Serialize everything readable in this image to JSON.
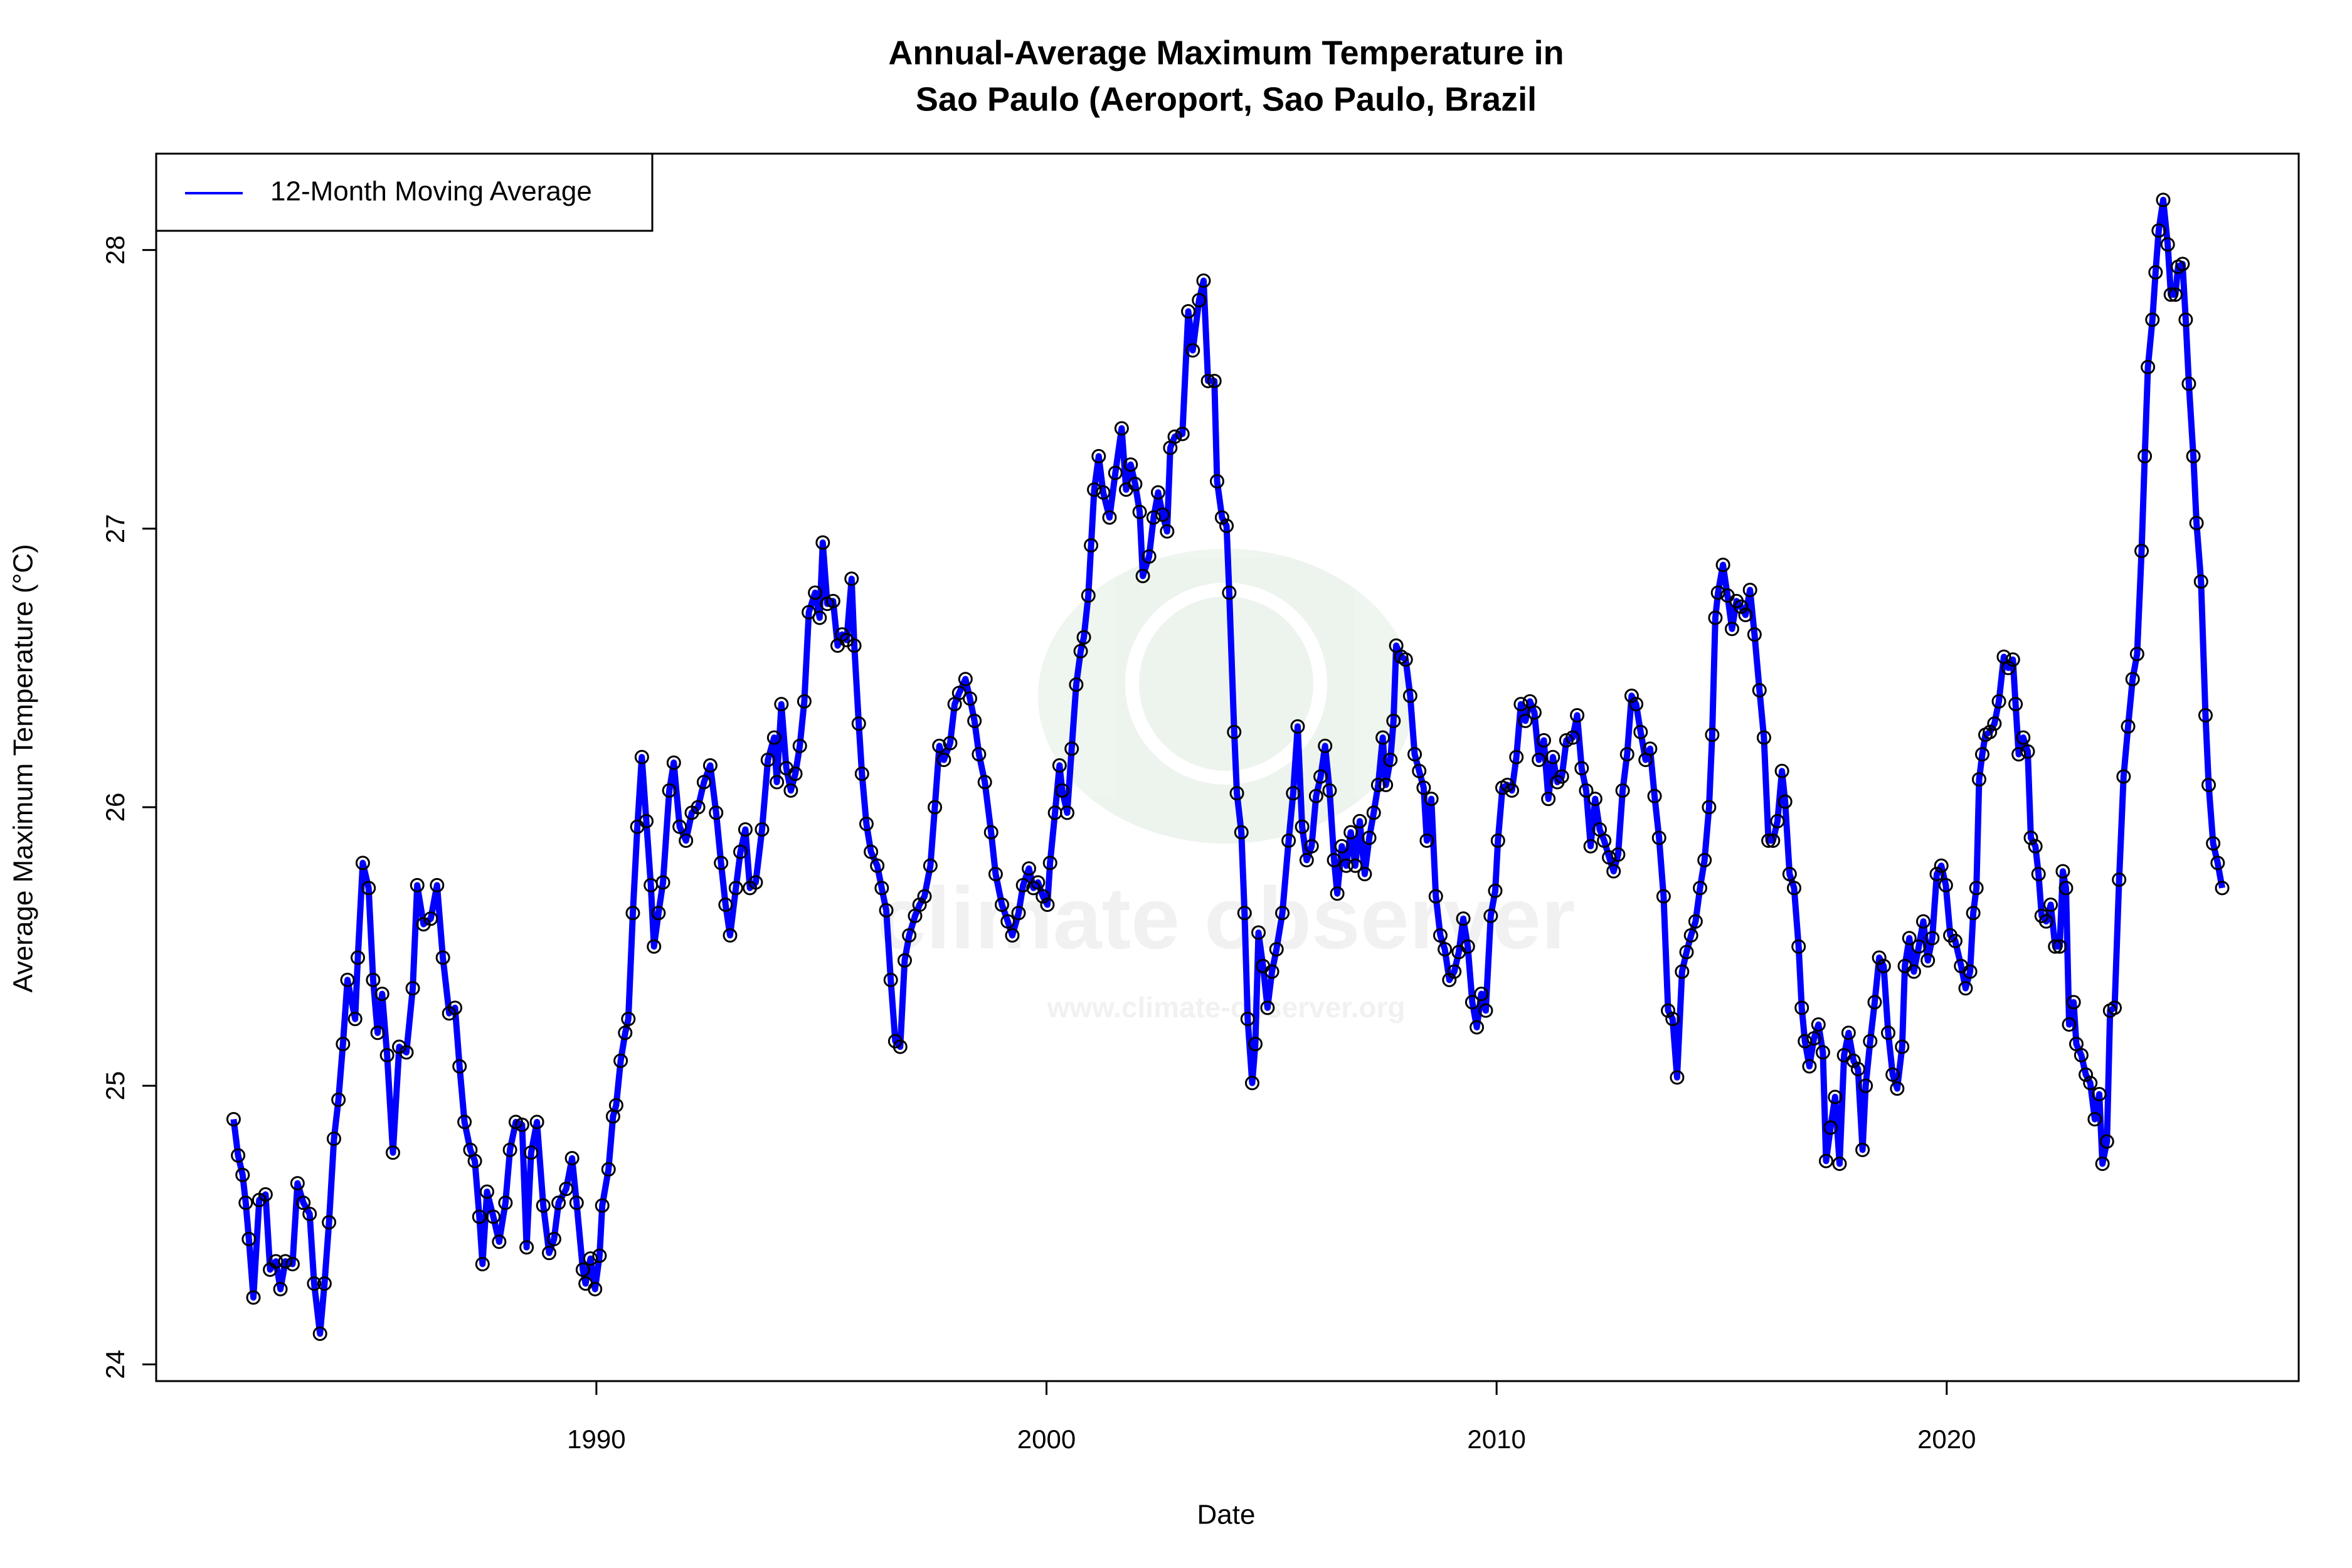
{
  "chart_data": {
    "type": "line",
    "title": [
      "Annual-Average Maximum Temperature in",
      "Sao Paulo (Aeroport, Sao Paulo, Brazil"
    ],
    "x_label": "Date",
    "y_label": "Average Maximum Temperature (°C)",
    "watermark": [
      "climate observer",
      "www.climate-observer.org"
    ],
    "legend": "topleft",
    "marker_color": "#000000",
    "xlim": [
      1980.22,
      2027.82
    ],
    "ylim": [
      23.94,
      28.346
    ],
    "xticks": [
      1990,
      2000,
      2010,
      2020
    ],
    "yticks": [
      24,
      25,
      26,
      27,
      28
    ],
    "x": [
      1981.94,
      1982.04,
      1982.14,
      1982.21,
      1982.28,
      1982.38,
      1982.51,
      1982.65,
      1982.75,
      1982.88,
      1982.98,
      1983.09,
      1983.25,
      1983.36,
      1983.49,
      1983.63,
      1983.73,
      1983.86,
      1983.96,
      1984.06,
      1984.17,
      1984.27,
      1984.37,
      1984.47,
      1984.64,
      1984.7,
      1984.81,
      1984.94,
      1985.04,
      1985.14,
      1985.24,
      1985.35,
      1985.48,
      1985.62,
      1985.78,
      1985.92,
      1986.02,
      1986.16,
      1986.32,
      1986.46,
      1986.59,
      1986.73,
      1986.86,
      1986.96,
      1987.07,
      1987.2,
      1987.3,
      1987.4,
      1987.47,
      1987.57,
      1987.71,
      1987.84,
      1987.98,
      1988.08,
      1988.21,
      1988.35,
      1988.45,
      1988.55,
      1988.68,
      1988.82,
      1988.95,
      1989.06,
      1989.16,
      1989.33,
      1989.46,
      1989.56,
      1989.7,
      1989.76,
      1989.87,
      1989.97,
      1990.07,
      1990.13,
      1990.27,
      1990.37,
      1990.44,
      1990.54,
      1990.64,
      1990.71,
      1990.81,
      1990.91,
      1991.01,
      1991.11,
      1991.21,
      1991.28,
      1991.38,
      1991.48,
      1991.62,
      1991.72,
      1991.85,
      1991.99,
      1992.12,
      1992.26,
      1992.39,
      1992.53,
      1992.66,
      1992.77,
      1992.87,
      1992.97,
      1993.1,
      1993.2,
      1993.31,
      1993.41,
      1993.54,
      1993.68,
      1993.81,
      1993.95,
      1994.01,
      1994.11,
      1994.22,
      1994.32,
      1994.42,
      1994.52,
      1994.62,
      1994.72,
      1994.86,
      1994.96,
      1995.03,
      1995.13,
      1995.26,
      1995.36,
      1995.46,
      1995.56,
      1995.67,
      1995.73,
      1995.83,
      1995.9,
      1996.0,
      1996.1,
      1996.24,
      1996.34,
      1996.44,
      1996.54,
      1996.64,
      1996.75,
      1996.85,
      1996.95,
      1997.08,
      1997.18,
      1997.29,
      1997.42,
      1997.52,
      1997.62,
      1997.72,
      1997.86,
      1997.96,
      1998.06,
      1998.2,
      1998.3,
      1998.4,
      1998.5,
      1998.63,
      1998.77,
      1998.87,
      1999.01,
      1999.14,
      1999.24,
      1999.38,
      1999.48,
      1999.61,
      1999.71,
      1999.81,
      1999.92,
      2000.02,
      2000.08,
      2000.19,
      2000.29,
      2000.35,
      2000.46,
      2000.56,
      2000.66,
      2000.76,
      2000.83,
      2000.93,
      2000.99,
      2001.06,
      2001.16,
      2001.26,
      2001.4,
      2001.53,
      2001.67,
      2001.77,
      2001.87,
      2001.97,
      2002.07,
      2002.14,
      2002.28,
      2002.38,
      2002.48,
      2002.58,
      2002.68,
      2002.75,
      2002.85,
      2003.02,
      2003.15,
      2003.25,
      2003.39,
      2003.49,
      2003.59,
      2003.73,
      2003.79,
      2003.9,
      2004.0,
      2004.06,
      2004.17,
      2004.23,
      2004.33,
      2004.4,
      2004.47,
      2004.57,
      2004.64,
      2004.71,
      2004.81,
      2004.91,
      2005.01,
      2005.11,
      2005.24,
      2005.38,
      2005.48,
      2005.58,
      2005.68,
      2005.78,
      2005.89,
      2005.99,
      2006.09,
      2006.19,
      2006.29,
      2006.39,
      2006.46,
      2006.56,
      2006.66,
      2006.76,
      2006.86,
      2006.96,
      2007.07,
      2007.17,
      2007.27,
      2007.37,
      2007.47,
      2007.54,
      2007.64,
      2007.71,
      2007.77,
      2007.88,
      2007.98,
      2008.08,
      2008.18,
      2008.28,
      2008.38,
      2008.45,
      2008.55,
      2008.65,
      2008.75,
      2008.85,
      2008.95,
      2009.06,
      2009.16,
      2009.26,
      2009.36,
      2009.46,
      2009.56,
      2009.66,
      2009.76,
      2009.87,
      2009.97,
      2010.03,
      2010.13,
      2010.24,
      2010.34,
      2010.44,
      2010.54,
      2010.64,
      2010.74,
      2010.84,
      2010.94,
      2011.05,
      2011.15,
      2011.25,
      2011.35,
      2011.45,
      2011.55,
      2011.69,
      2011.79,
      2011.89,
      2011.99,
      2012.09,
      2012.19,
      2012.29,
      2012.39,
      2012.5,
      2012.6,
      2012.7,
      2012.8,
      2012.9,
      2013.0,
      2013.1,
      2013.2,
      2013.31,
      2013.41,
      2013.51,
      2013.61,
      2013.71,
      2013.81,
      2013.91,
      2014.01,
      2014.12,
      2014.22,
      2014.32,
      2014.42,
      2014.52,
      2014.62,
      2014.72,
      2014.79,
      2014.86,
      2014.92,
      2015.03,
      2015.13,
      2015.23,
      2015.33,
      2015.43,
      2015.53,
      2015.63,
      2015.73,
      2015.84,
      2015.94,
      2016.04,
      2016.14,
      2016.24,
      2016.34,
      2016.41,
      2016.51,
      2016.61,
      2016.71,
      2016.78,
      2016.85,
      2016.95,
      2017.05,
      2017.15,
      2017.25,
      2017.32,
      2017.42,
      2017.52,
      2017.62,
      2017.72,
      2017.82,
      2017.93,
      2018.03,
      2018.13,
      2018.2,
      2018.3,
      2018.4,
      2018.5,
      2018.6,
      2018.7,
      2018.8,
      2018.9,
      2019.01,
      2019.07,
      2019.17,
      2019.27,
      2019.38,
      2019.48,
      2019.58,
      2019.68,
      2019.78,
      2019.88,
      2019.98,
      2020.08,
      2020.19,
      2020.32,
      2020.42,
      2020.52,
      2020.59,
      2020.66,
      2020.72,
      2020.79,
      2020.86,
      2020.96,
      2021.06,
      2021.16,
      2021.27,
      2021.37,
      2021.47,
      2021.53,
      2021.6,
      2021.7,
      2021.8,
      2021.87,
      2021.97,
      2022.04,
      2022.11,
      2022.21,
      2022.31,
      2022.41,
      2022.51,
      2022.58,
      2022.65,
      2022.72,
      2022.82,
      2022.88,
      2022.99,
      2023.09,
      2023.19,
      2023.29,
      2023.39,
      2023.46,
      2023.56,
      2023.63,
      2023.73,
      2023.83,
      2023.93,
      2024.03,
      2024.13,
      2024.23,
      2024.33,
      2024.4,
      2024.47,
      2024.57,
      2024.64,
      2024.71,
      2024.81,
      2024.91,
      2024.98,
      2025.08,
      2025.14,
      2025.24,
      2025.31,
      2025.38,
      2025.48,
      2025.55,
      2025.65,
      2025.75,
      2025.82,
      2025.92,
      2026.02,
      2026.12
    ],
    "series": [
      {
        "name": "12-Month Moving Average",
        "color": "#0000ff",
        "values": [
          24.88,
          24.75,
          24.68,
          24.58,
          24.45,
          24.24,
          24.59,
          24.61,
          24.34,
          24.37,
          24.27,
          24.37,
          24.36,
          24.65,
          24.58,
          24.54,
          24.29,
          24.11,
          24.29,
          24.51,
          24.81,
          24.95,
          25.15,
          25.38,
          25.24,
          25.46,
          25.8,
          25.71,
          25.38,
          25.19,
          25.33,
          25.11,
          24.76,
          25.14,
          25.12,
          25.35,
          25.72,
          25.58,
          25.6,
          25.72,
          25.46,
          25.26,
          25.28,
          25.07,
          24.87,
          24.77,
          24.73,
          24.53,
          24.36,
          24.62,
          24.53,
          24.44,
          24.58,
          24.77,
          24.87,
          24.86,
          24.42,
          24.76,
          24.87,
          24.57,
          24.4,
          24.45,
          24.58,
          24.63,
          24.74,
          24.58,
          24.34,
          24.29,
          24.38,
          24.27,
          24.39,
          24.57,
          24.7,
          24.89,
          24.93,
          25.09,
          25.19,
          25.24,
          25.62,
          25.93,
          26.18,
          25.95,
          25.72,
          25.5,
          25.62,
          25.73,
          26.06,
          26.16,
          25.93,
          25.88,
          25.98,
          26.0,
          26.09,
          26.15,
          25.98,
          25.8,
          25.65,
          25.54,
          25.71,
          25.84,
          25.92,
          25.71,
          25.73,
          25.92,
          26.17,
          26.25,
          26.09,
          26.37,
          26.14,
          26.06,
          26.12,
          26.22,
          26.38,
          26.7,
          26.77,
          26.68,
          26.95,
          26.73,
          26.74,
          26.58,
          26.62,
          26.6,
          26.82,
          26.58,
          26.3,
          26.12,
          25.94,
          25.84,
          25.79,
          25.71,
          25.63,
          25.38,
          25.16,
          25.14,
          25.45,
          25.54,
          25.61,
          25.65,
          25.68,
          25.79,
          26.0,
          26.22,
          26.17,
          26.23,
          26.37,
          26.41,
          26.46,
          26.39,
          26.31,
          26.19,
          26.09,
          25.91,
          25.76,
          25.65,
          25.59,
          25.54,
          25.62,
          25.72,
          25.78,
          25.71,
          25.73,
          25.68,
          25.65,
          25.8,
          25.98,
          26.15,
          26.06,
          25.98,
          26.21,
          26.44,
          26.56,
          26.61,
          26.76,
          26.94,
          27.14,
          27.26,
          27.13,
          27.04,
          27.2,
          27.36,
          27.14,
          27.23,
          27.16,
          27.06,
          26.83,
          26.9,
          27.04,
          27.13,
          27.05,
          26.99,
          27.29,
          27.33,
          27.34,
          27.78,
          27.64,
          27.82,
          27.89,
          27.53,
          27.53,
          27.17,
          27.04,
          27.01,
          26.77,
          26.27,
          26.05,
          25.91,
          25.62,
          25.24,
          25.01,
          25.15,
          25.55,
          25.43,
          25.28,
          25.41,
          25.49,
          25.62,
          25.88,
          26.05,
          26.29,
          25.93,
          25.81,
          25.86,
          26.04,
          26.11,
          26.22,
          26.06,
          25.81,
          25.69,
          25.86,
          25.79,
          25.91,
          25.79,
          25.95,
          25.76,
          25.89,
          25.98,
          26.08,
          26.25,
          26.08,
          26.17,
          26.31,
          26.58,
          26.54,
          26.53,
          26.4,
          26.19,
          26.13,
          26.07,
          25.88,
          26.03,
          25.68,
          25.54,
          25.49,
          25.38,
          25.41,
          25.48,
          25.6,
          25.5,
          25.3,
          25.21,
          25.33,
          25.27,
          25.61,
          25.7,
          25.88,
          26.07,
          26.08,
          26.06,
          26.18,
          26.37,
          26.31,
          26.38,
          26.34,
          26.17,
          26.24,
          26.03,
          26.18,
          26.09,
          26.11,
          26.24,
          26.25,
          26.33,
          26.14,
          26.06,
          25.86,
          26.03,
          25.92,
          25.88,
          25.82,
          25.77,
          25.83,
          26.06,
          26.19,
          26.4,
          26.37,
          26.27,
          26.17,
          26.21,
          26.04,
          25.89,
          25.68,
          25.27,
          25.24,
          25.03,
          25.41,
          25.48,
          25.54,
          25.59,
          25.71,
          25.81,
          26.0,
          26.26,
          26.68,
          26.77,
          26.87,
          26.76,
          26.64,
          26.74,
          26.72,
          26.69,
          26.78,
          26.62,
          26.42,
          26.25,
          25.88,
          25.88,
          25.95,
          26.13,
          26.02,
          25.76,
          25.71,
          25.5,
          25.28,
          25.16,
          25.07,
          25.17,
          25.22,
          25.12,
          24.73,
          24.85,
          24.96,
          24.72,
          25.11,
          25.19,
          25.09,
          25.06,
          24.77,
          25.0,
          25.16,
          25.3,
          25.46,
          25.43,
          25.19,
          25.04,
          24.99,
          25.14,
          25.43,
          25.53,
          25.41,
          25.5,
          25.59,
          25.45,
          25.53,
          25.76,
          25.79,
          25.72,
          25.54,
          25.52,
          25.43,
          25.35,
          25.41,
          25.62,
          25.71,
          26.1,
          26.19,
          26.26,
          26.27,
          26.3,
          26.38,
          26.54,
          26.5,
          26.53,
          26.37,
          26.19,
          26.25,
          26.2,
          25.89,
          25.86,
          25.76,
          25.61,
          25.59,
          25.65,
          25.5,
          25.5,
          25.77,
          25.71,
          25.22,
          25.3,
          25.15,
          25.11,
          25.04,
          25.01,
          24.88,
          24.97,
          24.72,
          24.8,
          25.27,
          25.28,
          25.74,
          26.11,
          26.29,
          26.46,
          26.55,
          26.92,
          27.26,
          27.58,
          27.75,
          27.92,
          28.07,
          28.18,
          28.02,
          27.84,
          27.84,
          27.94,
          27.95,
          27.75,
          27.52,
          27.26,
          27.02,
          26.81,
          26.33,
          26.08,
          25.87,
          25.8,
          25.71
        ]
      }
    ]
  }
}
